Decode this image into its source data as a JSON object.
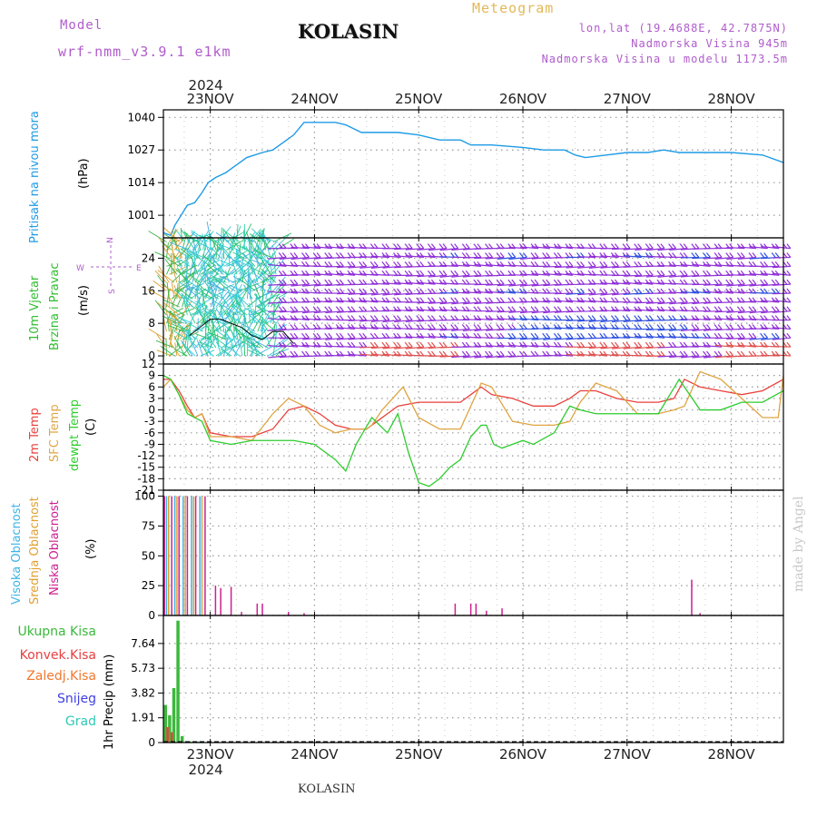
{
  "header": {
    "model_label": "Model",
    "model_name": "wrf-nmm_v3.9.1 e1km",
    "station": "KOLASIN",
    "product": "Meteogram",
    "lonlat": "lon,lat (19.4688E, 42.7875N)",
    "altitude": "Nadmorska Visina 945m",
    "model_altitude": "Nadmorska Visina u modelu 1173.5m"
  },
  "footer": {
    "station": "KOLASIN",
    "credit": "made by Angel"
  },
  "colors": {
    "pressure": "#1e9be6",
    "temp2m": "#e8413c",
    "sfc": "#dfa543",
    "dewpt": "#2ecc2e",
    "high_cloud": "#3cb4e6",
    "mid_cloud": "#e0a030",
    "low_cloud": "#cc2090",
    "precip_total": "#3cb83c",
    "precip_conv": "#e84040",
    "freezing": "#f07830",
    "snow": "#4040e0",
    "hail": "#30c8b4",
    "wind_strong": "#3050e0",
    "wind_mid": "#9030d8",
    "wind_light": "#e05050"
  },
  "chart_data": [
    {
      "type": "line",
      "ylabel_left": "Pritisak na nivou mora",
      "ylabel_unit": "(hPa)",
      "yticks": [
        "1001",
        "1014",
        "1027",
        "1040"
      ],
      "ylim": [
        992,
        1043
      ],
      "x_axis": {
        "year": "2024",
        "day_labels": [
          "23NOV",
          "24NOV",
          "25NOV",
          "26NOV",
          "27NOV",
          "28NOV"
        ],
        "range_days": [
          22.55,
          28.5
        ]
      },
      "grid": true,
      "series": [
        {
          "x": [
            22.55,
            22.62,
            22.66,
            22.72,
            22.78,
            22.85,
            22.92,
            22.98,
            23.05,
            23.15,
            23.25,
            23.35,
            23.5,
            23.6,
            23.7,
            23.8,
            23.9,
            24.0,
            24.2,
            24.3,
            24.45,
            24.6,
            24.8,
            25.0,
            25.2,
            25.4,
            25.5,
            25.7,
            26.0,
            26.2,
            26.4,
            26.5,
            26.6,
            26.8,
            27.0,
            27.2,
            27.35,
            27.5,
            27.7,
            28.0,
            28.3,
            28.5
          ],
          "y": [
            994,
            993,
            997,
            1001,
            1005,
            1006,
            1010,
            1014,
            1016,
            1018,
            1021,
            1024,
            1026,
            1027,
            1030,
            1033,
            1038,
            1038,
            1038,
            1037,
            1034,
            1034,
            1034,
            1033,
            1031,
            1031,
            1029,
            1029,
            1028,
            1027,
            1027,
            1025,
            1024,
            1025,
            1026,
            1026,
            1027,
            1026,
            1026,
            1026,
            1025,
            1022
          ]
        }
      ]
    },
    {
      "type": "scatter",
      "ylabel_left": [
        "10m Vjetar",
        "Brzina i Pravac"
      ],
      "ylabel_unit": "(m/s)",
      "compass_legend": {
        "n": "N",
        "w": "W",
        "e": "E",
        "s": "S"
      },
      "yticks": [
        "0",
        "8",
        "16",
        "24"
      ],
      "ylim": [
        -2,
        29
      ],
      "grid": true,
      "wind_speed_series": {
        "x": [
          22.8,
          22.9,
          23.0,
          23.1,
          23.2,
          23.3,
          23.4,
          23.5,
          23.6,
          23.7,
          23.8
        ],
        "y": [
          5,
          7,
          9,
          9,
          8,
          7,
          5,
          4,
          6,
          6,
          3
        ]
      }
    },
    {
      "type": "line",
      "ylabel_left": [
        "2m Temp",
        "SFC Temp",
        "dewpt Temp"
      ],
      "ylabel_unit": "(C)",
      "yticks": [
        "12",
        "9",
        "6",
        "3",
        "0",
        "-3",
        "-6",
        "-9",
        "-12",
        "-15",
        "-18",
        "-21"
      ],
      "ylim": [
        -21,
        12
      ],
      "grid": true,
      "series": [
        {
          "name": "2m Temp",
          "x": [
            22.55,
            22.62,
            22.7,
            22.78,
            22.85,
            22.92,
            23.0,
            23.2,
            23.4,
            23.6,
            23.75,
            23.9,
            24.05,
            24.2,
            24.35,
            24.5,
            24.6,
            24.7,
            24.8,
            25.0,
            25.2,
            25.4,
            25.5,
            25.6,
            25.7,
            25.9,
            26.1,
            26.3,
            26.45,
            26.55,
            26.7,
            26.9,
            27.1,
            27.3,
            27.45,
            27.55,
            27.7,
            27.9,
            28.1,
            28.3,
            28.5
          ],
          "y": [
            8,
            8,
            5,
            1,
            -2,
            -1,
            -6,
            -7,
            -7,
            -5,
            0,
            1,
            -1,
            -4,
            -5,
            -5,
            -3,
            -1,
            1,
            2,
            2,
            2,
            4,
            6,
            4,
            3,
            1,
            1,
            3,
            5,
            5,
            3,
            2,
            2,
            3,
            8,
            6,
            5,
            4,
            5,
            8
          ]
        },
        {
          "name": "SFC Temp",
          "x": [
            22.55,
            22.62,
            22.7,
            22.78,
            22.85,
            22.92,
            23.0,
            23.2,
            23.4,
            23.6,
            23.75,
            23.9,
            24.05,
            24.2,
            24.35,
            24.5,
            24.55,
            24.65,
            24.75,
            24.85,
            25.0,
            25.2,
            25.4,
            25.5,
            25.6,
            25.7,
            25.9,
            26.1,
            26.3,
            26.45,
            26.55,
            26.7,
            26.9,
            27.1,
            27.3,
            27.45,
            27.55,
            27.7,
            27.9,
            28.1,
            28.3,
            28.45,
            28.5
          ],
          "y": [
            6,
            8,
            4,
            0,
            -2,
            -1,
            -7,
            -7,
            -8,
            -1,
            3,
            1,
            -4,
            -6,
            -5,
            -5,
            -4,
            0,
            3,
            6,
            -2,
            -5,
            -5,
            1,
            7,
            6,
            -3,
            -4,
            -4,
            -3,
            2,
            7,
            5,
            -1,
            -1,
            0,
            1,
            10,
            8,
            3,
            -2,
            -2,
            9
          ]
        },
        {
          "name": "dewpt Temp",
          "x": [
            22.55,
            22.62,
            22.7,
            22.78,
            22.85,
            22.92,
            23.0,
            23.2,
            23.4,
            23.6,
            23.8,
            24.0,
            24.2,
            24.3,
            24.4,
            24.55,
            24.7,
            24.8,
            24.9,
            25.0,
            25.1,
            25.2,
            25.3,
            25.4,
            25.5,
            25.6,
            25.65,
            25.72,
            25.8,
            26.0,
            26.1,
            26.3,
            26.45,
            26.55,
            26.7,
            26.9,
            27.1,
            27.3,
            27.5,
            27.6,
            27.7,
            27.9,
            28.1,
            28.3,
            28.5
          ],
          "y": [
            9,
            8,
            4,
            -1,
            -2,
            -3,
            -8,
            -9,
            -8,
            -8,
            -8,
            -9,
            -13,
            -16,
            -9,
            -2,
            -6,
            -1,
            -11,
            -19,
            -20,
            -18,
            -15,
            -13,
            -7,
            -4,
            -4,
            -9,
            -10,
            -8,
            -9,
            -6,
            1,
            0,
            -1,
            -1,
            -1,
            -1,
            8,
            4,
            0,
            0,
            2,
            2,
            5
          ]
        }
      ]
    },
    {
      "type": "bar",
      "ylabel_left": [
        "Visoka Oblacnost",
        "Srednja Oblacnost",
        "Niska Oblacnost"
      ],
      "ylabel_unit": "(%)",
      "yticks": [
        "0",
        "25",
        "50",
        "75",
        "100"
      ],
      "ylim": [
        0,
        105
      ],
      "grid": true,
      "series": [
        {
          "name": "Visoka Oblacnost",
          "x": [
            22.58,
            22.66,
            22.74,
            22.82,
            22.9
          ],
          "values": [
            100,
            100,
            100,
            100,
            100
          ]
        },
        {
          "name": "Srednja Oblacnost",
          "x": [
            22.6,
            22.68,
            22.76,
            22.84,
            22.92
          ],
          "values": [
            100,
            100,
            100,
            100,
            100
          ]
        },
        {
          "name": "Niska Oblacnost",
          "x": [
            22.56,
            22.63,
            22.7,
            22.78,
            22.86,
            22.95,
            23.05,
            23.1,
            23.2,
            23.3,
            23.45,
            23.5,
            23.75,
            23.9,
            25.35,
            25.5,
            25.55,
            25.65,
            25.8,
            27.62,
            27.7
          ],
          "values": [
            100,
            100,
            100,
            100,
            100,
            100,
            25,
            23,
            24,
            3,
            10,
            10,
            3,
            2,
            10,
            10,
            10,
            4,
            6,
            30,
            2
          ]
        }
      ]
    },
    {
      "type": "bar",
      "ylabel_left": [
        "Ukupna Kisa",
        "Konvek.Kisa",
        "Zaledj.Kisa",
        "Snijeg",
        "Grad"
      ],
      "ylabel_unit": "1hr Precip (mm)",
      "yticks": [
        "0",
        "1.91",
        "3.82",
        "5.73",
        "7.64"
      ],
      "ylim": [
        0,
        9.8
      ],
      "grid": true,
      "series": [
        {
          "name": "Ukupna Kisa",
          "x": [
            22.57,
            22.61,
            22.65,
            22.69,
            22.73,
            22.8,
            22.88
          ],
          "values": [
            2.9,
            2.1,
            4.2,
            9.4,
            0.5,
            0.1,
            0.08
          ]
        },
        {
          "name": "Konvek.Kisa",
          "x": [
            22.59,
            22.63
          ],
          "values": [
            1.2,
            0.8
          ]
        }
      ]
    }
  ]
}
